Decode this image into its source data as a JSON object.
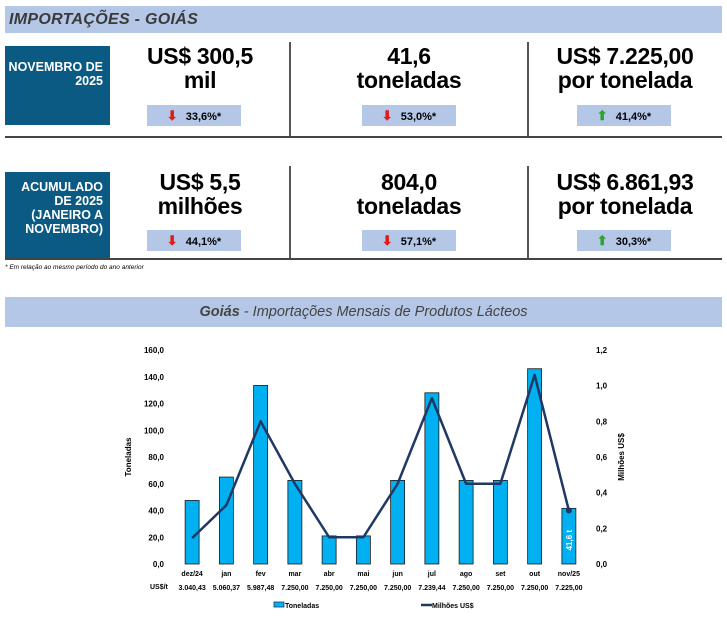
{
  "header": {
    "title": "IMPORTAÇÕES - GOIÁS"
  },
  "monthly": {
    "period": "NOVEMBRO DE 2025",
    "cards": [
      {
        "line1": "US$ 300,5",
        "line2": "mil",
        "change": "33,6%*",
        "direction": "down"
      },
      {
        "line1": "41,6",
        "line2": "toneladas",
        "change": "53,0%*",
        "direction": "down"
      },
      {
        "line1": "US$ 7.225,00",
        "line2": "por tonelada",
        "change": "41,4%*",
        "direction": "up"
      }
    ]
  },
  "accumulated": {
    "period": "ACUMULADO DE 2025 (JANEIRO A NOVEMBRO)",
    "cards": [
      {
        "line1": "US$ 5,5",
        "line2": "milhões",
        "change": "44,1%*",
        "direction": "down"
      },
      {
        "line1": "804,0",
        "line2": "toneladas",
        "change": "57,1%*",
        "direction": "down"
      },
      {
        "line1": "US$ 6.861,93",
        "line2": "por tonelada",
        "change": "30,3%*",
        "direction": "up"
      }
    ]
  },
  "footnote": "* Em relação ao mesmo período do ano anterior",
  "chart_title": {
    "bold": "Goiás",
    "rest": " - Importações Mensais de Produtos Lácteos"
  },
  "colors": {
    "bar": "#00b0f0",
    "line": "#1f3864",
    "period_bg": "#0b5a84",
    "band": "#b4c7e7",
    "down": "#e01b1b",
    "up": "#2aa52a"
  },
  "chart_data": {
    "type": "bar+line",
    "categories": [
      "dez/24",
      "jan",
      "fev",
      "mar",
      "abr",
      "mai",
      "jun",
      "jul",
      "ago",
      "set",
      "out",
      "nov/25"
    ],
    "series": [
      {
        "name": "Toneladas",
        "type": "bar",
        "axis": "left",
        "values": [
          47.5,
          65.0,
          133.5,
          62.5,
          21.0,
          21.0,
          62.5,
          128.0,
          62.5,
          62.5,
          146.0,
          41.6
        ]
      },
      {
        "name": "Milhões US$",
        "type": "line",
        "axis": "right",
        "values": [
          0.145,
          0.33,
          0.8,
          0.45,
          0.15,
          0.15,
          0.45,
          0.93,
          0.45,
          0.45,
          1.06,
          0.3
        ]
      }
    ],
    "price_row_label": "US$/t",
    "price_row": [
      "3.040,43",
      "5.060,37",
      "5.987,48",
      "7.250,00",
      "7.250,00",
      "7.250,00",
      "7.250,00",
      "7.239,44",
      "7.250,00",
      "7.250,00",
      "7.250,00",
      "7.225,00"
    ],
    "ylabel": "Toneladas",
    "y2label": "Milhões US$",
    "ylim": [
      0,
      160
    ],
    "y2lim": [
      0,
      1.2
    ],
    "yticks": [
      "0,0",
      "20,0",
      "40,0",
      "60,0",
      "80,0",
      "100,0",
      "120,0",
      "140,0",
      "160,0"
    ],
    "y2ticks": [
      "0,0",
      "0,2",
      "0,4",
      "0,6",
      "0,8",
      "1,0",
      "1,2"
    ],
    "annotation": "41,6 t",
    "legend": [
      "Toneladas",
      "Milhões US$"
    ],
    "legend_position": "bottom",
    "grid": false
  }
}
